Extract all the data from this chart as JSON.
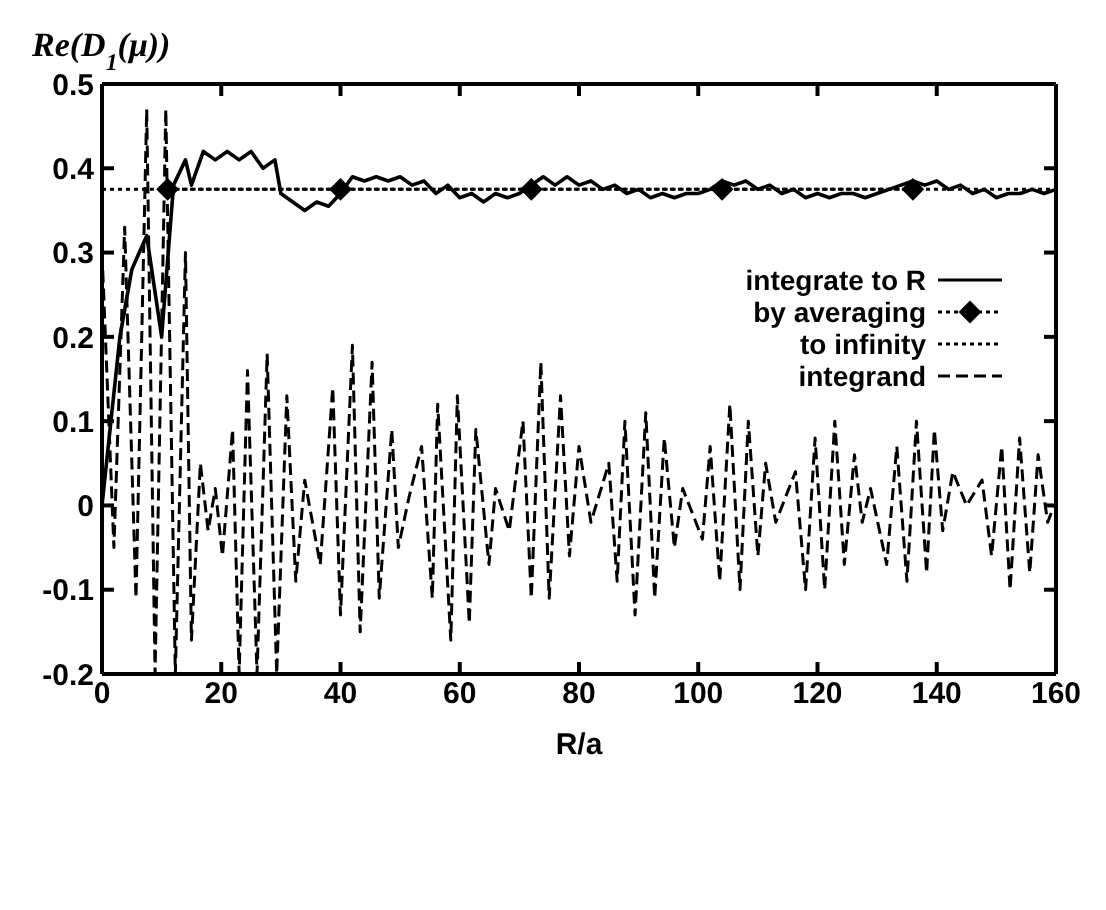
{
  "chart_data": {
    "type": "line",
    "title": "Re(D$_{1}$(μ))",
    "xlabel": "R/a",
    "xlim": [
      0,
      160
    ],
    "xticks": [
      0,
      20,
      40,
      60,
      80,
      100,
      120,
      140,
      160
    ],
    "ylim": [
      -0.2,
      0.5
    ],
    "yticks": [
      -0.2,
      -0.1,
      0,
      0.1,
      0.2,
      0.3,
      0.4,
      0.5
    ],
    "legend": "right",
    "series": [
      {
        "name": "integrate to R",
        "color": "#000000",
        "line_style": "solid",
        "marker": "none",
        "x": [
          0,
          3,
          5,
          7.5,
          10,
          12,
          14,
          15,
          17,
          19,
          21,
          23,
          25,
          27,
          29,
          30,
          32,
          34,
          36,
          38,
          40,
          42,
          44,
          46,
          48,
          50,
          52,
          54,
          56,
          58,
          60,
          62,
          64,
          66,
          68,
          70,
          72,
          74,
          76,
          78,
          80,
          82,
          84,
          86,
          88,
          90,
          92,
          94,
          96,
          98,
          100,
          102,
          104,
          106,
          108,
          110,
          112,
          114,
          116,
          118,
          120,
          122,
          124,
          126,
          128,
          130,
          132,
          134,
          136,
          138,
          140,
          142,
          144,
          146,
          148,
          150,
          152,
          154,
          156,
          158,
          160
        ],
        "values": [
          0,
          0.2,
          0.28,
          0.32,
          0.2,
          0.38,
          0.41,
          0.38,
          0.42,
          0.41,
          0.42,
          0.41,
          0.42,
          0.4,
          0.41,
          0.37,
          0.36,
          0.35,
          0.36,
          0.355,
          0.37,
          0.39,
          0.385,
          0.39,
          0.385,
          0.39,
          0.38,
          0.385,
          0.37,
          0.38,
          0.365,
          0.37,
          0.36,
          0.37,
          0.365,
          0.37,
          0.38,
          0.39,
          0.38,
          0.39,
          0.38,
          0.385,
          0.375,
          0.38,
          0.37,
          0.375,
          0.365,
          0.37,
          0.365,
          0.37,
          0.37,
          0.375,
          0.385,
          0.38,
          0.385,
          0.375,
          0.38,
          0.37,
          0.375,
          0.365,
          0.37,
          0.365,
          0.37,
          0.37,
          0.365,
          0.37,
          0.375,
          0.38,
          0.385,
          0.38,
          0.385,
          0.375,
          0.38,
          0.37,
          0.375,
          0.365,
          0.37,
          0.37,
          0.375,
          0.37,
          0.375
        ]
      },
      {
        "name": "by averaging",
        "color": "#000000",
        "line_style": "dotted",
        "marker": "diamond",
        "x": [
          11,
          40,
          72,
          104,
          136
        ],
        "values": [
          0.375,
          0.375,
          0.375,
          0.375,
          0.375
        ]
      },
      {
        "name": "to infinity",
        "color": "#000000",
        "line_style": "dotted",
        "marker": "none",
        "x": [
          0,
          160
        ],
        "values": [
          0.375,
          0.375
        ]
      },
      {
        "name": "integrand",
        "color": "#000000",
        "line_style": "dashed",
        "marker": "none",
        "x": [
          0,
          2,
          3.8,
          5.7,
          7.5,
          8.9,
          10.7,
          12.3,
          14,
          15,
          16.5,
          17.8,
          19,
          20.2,
          21.9,
          23,
          24.4,
          26,
          27.7,
          29.3,
          31,
          32.5,
          34,
          36.6,
          38.7,
          40,
          42,
          43.3,
          45.3,
          46.5,
          48.6,
          49.7,
          51.5,
          53.6,
          55.4,
          56.3,
          58.5,
          59.6,
          61.6,
          62.7,
          64.9,
          66,
          68.3,
          70.6,
          72,
          73.6,
          75,
          76.9,
          78.4,
          80,
          82,
          85,
          86.4,
          87.7,
          89.4,
          91.2,
          92.7,
          94.3,
          96,
          97.4,
          100.7,
          102,
          103.6,
          105.3,
          107,
          108.4,
          110,
          111.3,
          113,
          116.3,
          118,
          119.6,
          121.2,
          122.9,
          124.5,
          126.2,
          127.5,
          128.9,
          131.6,
          133.3,
          135,
          136.6,
          138.3,
          139.6,
          141,
          142.7,
          145,
          147.6,
          149.2,
          150.9,
          152.3,
          153.9,
          155.6,
          157,
          158.6,
          159.7
        ],
        "values": [
          0.3,
          -0.05,
          0.33,
          -0.11,
          0.47,
          -0.2,
          0.47,
          -0.2,
          0.3,
          -0.16,
          0.05,
          -0.03,
          0.02,
          -0.06,
          0.09,
          -0.2,
          0.16,
          -0.2,
          0.18,
          -0.2,
          0.13,
          -0.09,
          0.03,
          -0.07,
          0.14,
          -0.13,
          0.19,
          -0.15,
          0.17,
          -0.11,
          0.09,
          -0.05,
          0.01,
          0.07,
          -0.11,
          0.12,
          -0.16,
          0.13,
          -0.14,
          0.09,
          -0.07,
          0.02,
          -0.03,
          0.1,
          -0.11,
          0.17,
          -0.11,
          0.13,
          -0.06,
          0.07,
          -0.02,
          0.05,
          -0.09,
          0.1,
          -0.13,
          0.11,
          -0.11,
          0.08,
          -0.05,
          0.02,
          -0.04,
          0.07,
          -0.09,
          0.12,
          -0.1,
          0.1,
          -0.06,
          0.05,
          -0.02,
          0.04,
          -0.1,
          0.08,
          -0.1,
          0.1,
          -0.07,
          0.06,
          -0.02,
          0.02,
          -0.07,
          0.07,
          -0.09,
          0.1,
          -0.08,
          0.09,
          -0.03,
          0.04,
          0.0,
          0.03,
          -0.06,
          0.07,
          -0.1,
          0.08,
          -0.08,
          0.06,
          -0.02,
          0.0
        ]
      }
    ]
  }
}
